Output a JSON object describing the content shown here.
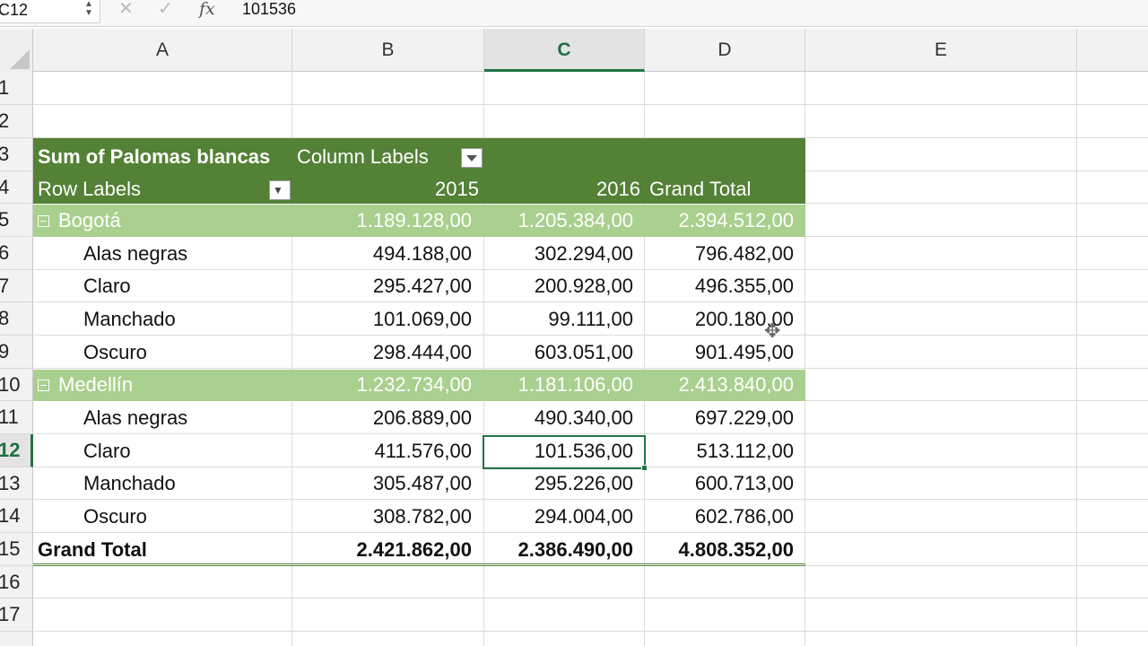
{
  "formula_bar": {
    "name_box": "C12",
    "name_box_arrows": "▲▼",
    "cancel_glyph": "✕",
    "enter_glyph": "✓",
    "fx_glyph": "fx",
    "formula": "101536"
  },
  "columns": [
    "A",
    "B",
    "C",
    "D",
    "E"
  ],
  "active_column": "C",
  "rows": [
    "1",
    "2",
    "3",
    "4",
    "5",
    "6",
    "7",
    "8",
    "9",
    "10",
    "11",
    "12",
    "13",
    "14",
    "15",
    "16",
    "17"
  ],
  "active_row": "12",
  "pivot": {
    "title": "Sum of Palomas blancas",
    "column_labels": "Column Labels",
    "row_labels": "Row Labels",
    "headers": [
      "2015",
      "2016",
      "Grand Total"
    ],
    "groups": [
      {
        "name": "Bogotá",
        "totals": [
          "1.189.128,00",
          "1.205.384,00",
          "2.394.512,00"
        ],
        "items": [
          {
            "label": "Alas negras",
            "values": [
              "494.188,00",
              "302.294,00",
              "796.482,00"
            ]
          },
          {
            "label": "Claro",
            "values": [
              "295.427,00",
              "200.928,00",
              "496.355,00"
            ]
          },
          {
            "label": "Manchado",
            "values": [
              "101.069,00",
              "99.111,00",
              "200.180,00"
            ]
          },
          {
            "label": "Oscuro",
            "values": [
              "298.444,00",
              "603.051,00",
              "901.495,00"
            ]
          }
        ]
      },
      {
        "name": "Medellín",
        "totals": [
          "1.232.734,00",
          "1.181.106,00",
          "2.413.840,00"
        ],
        "items": [
          {
            "label": "Alas negras",
            "values": [
              "206.889,00",
              "490.340,00",
              "697.229,00"
            ]
          },
          {
            "label": "Claro",
            "values": [
              "411.576,00",
              "101.536,00",
              "513.112,00"
            ]
          },
          {
            "label": "Manchado",
            "values": [
              "305.487,00",
              "295.226,00",
              "600.713,00"
            ]
          },
          {
            "label": "Oscuro",
            "values": [
              "308.782,00",
              "294.004,00",
              "602.786,00"
            ]
          }
        ]
      }
    ],
    "grand_total_label": "Grand Total",
    "grand_total": [
      "2.421.862,00",
      "2.386.490,00",
      "4.808.352,00"
    ]
  },
  "colors": {
    "pivot_header": "#538135",
    "pivot_group": "#a9d08e",
    "selection": "#217346"
  }
}
